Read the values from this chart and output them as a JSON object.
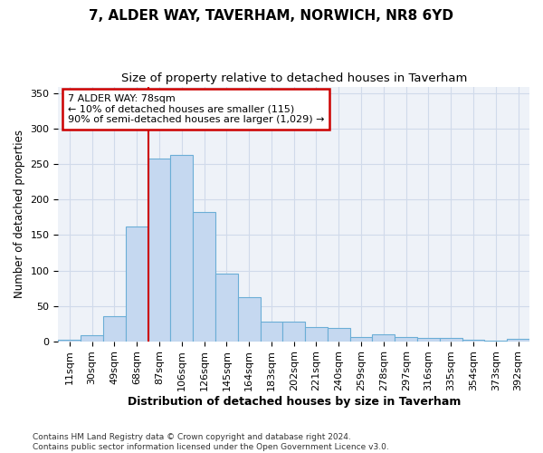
{
  "title": "7, ALDER WAY, TAVERHAM, NORWICH, NR8 6YD",
  "subtitle": "Size of property relative to detached houses in Taverham",
  "xlabel": "Distribution of detached houses by size in Taverham",
  "ylabel": "Number of detached properties",
  "categories": [
    "11sqm",
    "30sqm",
    "49sqm",
    "68sqm",
    "87sqm",
    "106sqm",
    "126sqm",
    "145sqm",
    "164sqm",
    "183sqm",
    "202sqm",
    "221sqm",
    "240sqm",
    "259sqm",
    "278sqm",
    "297sqm",
    "316sqm",
    "335sqm",
    "354sqm",
    "373sqm",
    "392sqm"
  ],
  "values": [
    2,
    9,
    35,
    162,
    258,
    263,
    183,
    95,
    62,
    28,
    28,
    20,
    19,
    6,
    10,
    6,
    5,
    4,
    2,
    1,
    3
  ],
  "bar_color": "#c5d8f0",
  "bar_edge_color": "#6baed6",
  "grid_color": "#d0daea",
  "bg_color": "#eef2f8",
  "annotation_line1": "7 ALDER WAY: 78sqm",
  "annotation_line2": "← 10% of detached houses are smaller (115)",
  "annotation_line3": "90% of semi-detached houses are larger (1,029) →",
  "annotation_box_color": "#ffffff",
  "annotation_box_edge": "#cc0000",
  "vline_color": "#cc0000",
  "ylim_max": 360,
  "footer": "Contains HM Land Registry data © Crown copyright and database right 2024.\nContains public sector information licensed under the Open Government Licence v3.0.",
  "title_fontsize": 11,
  "subtitle_fontsize": 9.5,
  "tick_fontsize": 8,
  "ylabel_fontsize": 8.5,
  "xlabel_fontsize": 9,
  "footer_fontsize": 6.5
}
